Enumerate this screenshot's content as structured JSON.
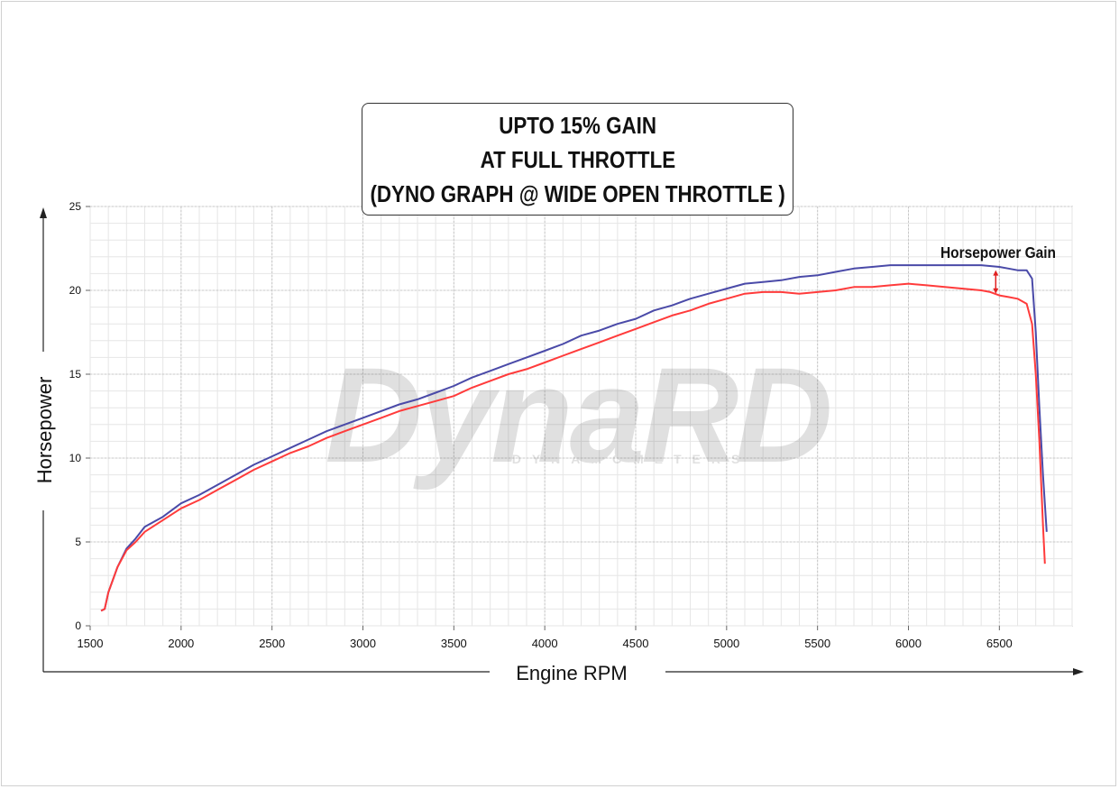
{
  "title_lines": [
    "UPTO 15% GAIN",
    "AT FULL THROTTLE",
    "(DYNO GRAPH @ WIDE OPEN THROTTLE )"
  ],
  "watermark": {
    "brand": "DynaRD",
    "tagline": "DYNAMOMETERS"
  },
  "colors": {
    "baseline": "#ff3b3b",
    "tuned": "#4a4aa8",
    "grid": "#c8c8c8",
    "annotation": "#e02020"
  },
  "chart_data": {
    "type": "line",
    "title": "UPTO 15% GAIN AT FULL THROTTLE (DYNO GRAPH @ WIDE OPEN THROTTLE )",
    "xlabel": "Engine RPM",
    "ylabel": "Horsepower",
    "xlim": [
      1500,
      6900
    ],
    "ylim": [
      0,
      25
    ],
    "xticks": [
      1500,
      2000,
      2500,
      3000,
      3500,
      4000,
      4500,
      5000,
      5500,
      6000,
      6500
    ],
    "yticks": [
      0,
      5,
      10,
      15,
      20,
      25
    ],
    "grid": true,
    "series": [
      {
        "color_key": "tuned",
        "points": [
          [
            1560,
            0.9
          ],
          [
            1580,
            1.0
          ],
          [
            1600,
            2.0
          ],
          [
            1650,
            3.5
          ],
          [
            1700,
            4.6
          ],
          [
            1750,
            5.2
          ],
          [
            1800,
            5.9
          ],
          [
            1900,
            6.5
          ],
          [
            2000,
            7.3
          ],
          [
            2100,
            7.8
          ],
          [
            2200,
            8.4
          ],
          [
            2300,
            9.0
          ],
          [
            2400,
            9.6
          ],
          [
            2500,
            10.1
          ],
          [
            2600,
            10.6
          ],
          [
            2700,
            11.1
          ],
          [
            2800,
            11.6
          ],
          [
            2900,
            12.0
          ],
          [
            3000,
            12.4
          ],
          [
            3100,
            12.8
          ],
          [
            3200,
            13.2
          ],
          [
            3300,
            13.5
          ],
          [
            3400,
            13.9
          ],
          [
            3500,
            14.3
          ],
          [
            3600,
            14.8
          ],
          [
            3700,
            15.2
          ],
          [
            3800,
            15.6
          ],
          [
            3900,
            16.0
          ],
          [
            4000,
            16.4
          ],
          [
            4100,
            16.8
          ],
          [
            4200,
            17.3
          ],
          [
            4300,
            17.6
          ],
          [
            4400,
            18.0
          ],
          [
            4500,
            18.3
          ],
          [
            4600,
            18.8
          ],
          [
            4700,
            19.1
          ],
          [
            4800,
            19.5
          ],
          [
            4900,
            19.8
          ],
          [
            5000,
            20.1
          ],
          [
            5100,
            20.4
          ],
          [
            5200,
            20.5
          ],
          [
            5300,
            20.6
          ],
          [
            5400,
            20.8
          ],
          [
            5500,
            20.9
          ],
          [
            5600,
            21.1
          ],
          [
            5700,
            21.3
          ],
          [
            5800,
            21.4
          ],
          [
            5900,
            21.5
          ],
          [
            6000,
            21.5
          ],
          [
            6100,
            21.5
          ],
          [
            6200,
            21.5
          ],
          [
            6300,
            21.5
          ],
          [
            6400,
            21.5
          ],
          [
            6500,
            21.4
          ],
          [
            6550,
            21.3
          ],
          [
            6600,
            21.2
          ],
          [
            6650,
            21.2
          ],
          [
            6680,
            20.7
          ],
          [
            6700,
            17.5
          ],
          [
            6720,
            13.0
          ],
          [
            6740,
            9.0
          ],
          [
            6760,
            5.6
          ]
        ]
      },
      {
        "color_key": "baseline",
        "points": [
          [
            1560,
            0.9
          ],
          [
            1580,
            1.0
          ],
          [
            1600,
            2.0
          ],
          [
            1650,
            3.5
          ],
          [
            1700,
            4.5
          ],
          [
            1750,
            5.0
          ],
          [
            1800,
            5.6
          ],
          [
            1900,
            6.3
          ],
          [
            2000,
            7.0
          ],
          [
            2100,
            7.5
          ],
          [
            2200,
            8.1
          ],
          [
            2300,
            8.7
          ],
          [
            2400,
            9.3
          ],
          [
            2500,
            9.8
          ],
          [
            2600,
            10.3
          ],
          [
            2700,
            10.7
          ],
          [
            2800,
            11.2
          ],
          [
            2900,
            11.6
          ],
          [
            3000,
            12.0
          ],
          [
            3100,
            12.4
          ],
          [
            3200,
            12.8
          ],
          [
            3300,
            13.1
          ],
          [
            3400,
            13.4
          ],
          [
            3500,
            13.7
          ],
          [
            3600,
            14.2
          ],
          [
            3700,
            14.6
          ],
          [
            3800,
            15.0
          ],
          [
            3900,
            15.3
          ],
          [
            4000,
            15.7
          ],
          [
            4100,
            16.1
          ],
          [
            4200,
            16.5
          ],
          [
            4300,
            16.9
          ],
          [
            4400,
            17.3
          ],
          [
            4500,
            17.7
          ],
          [
            4600,
            18.1
          ],
          [
            4700,
            18.5
          ],
          [
            4800,
            18.8
          ],
          [
            4900,
            19.2
          ],
          [
            5000,
            19.5
          ],
          [
            5100,
            19.8
          ],
          [
            5200,
            19.9
          ],
          [
            5300,
            19.9
          ],
          [
            5400,
            19.8
          ],
          [
            5500,
            19.9
          ],
          [
            5600,
            20.0
          ],
          [
            5700,
            20.2
          ],
          [
            5800,
            20.2
          ],
          [
            5900,
            20.3
          ],
          [
            6000,
            20.4
          ],
          [
            6100,
            20.3
          ],
          [
            6200,
            20.2
          ],
          [
            6300,
            20.1
          ],
          [
            6400,
            20.0
          ],
          [
            6450,
            19.9
          ],
          [
            6500,
            19.7
          ],
          [
            6550,
            19.6
          ],
          [
            6600,
            19.5
          ],
          [
            6650,
            19.2
          ],
          [
            6680,
            18.0
          ],
          [
            6700,
            15.0
          ],
          [
            6720,
            11.0
          ],
          [
            6740,
            6.0
          ],
          [
            6750,
            3.7
          ]
        ]
      }
    ],
    "annotations": [
      {
        "text": "Horsepower Gain",
        "x": 6480,
        "y_from": 19.8,
        "y_to": 21.2
      }
    ]
  }
}
